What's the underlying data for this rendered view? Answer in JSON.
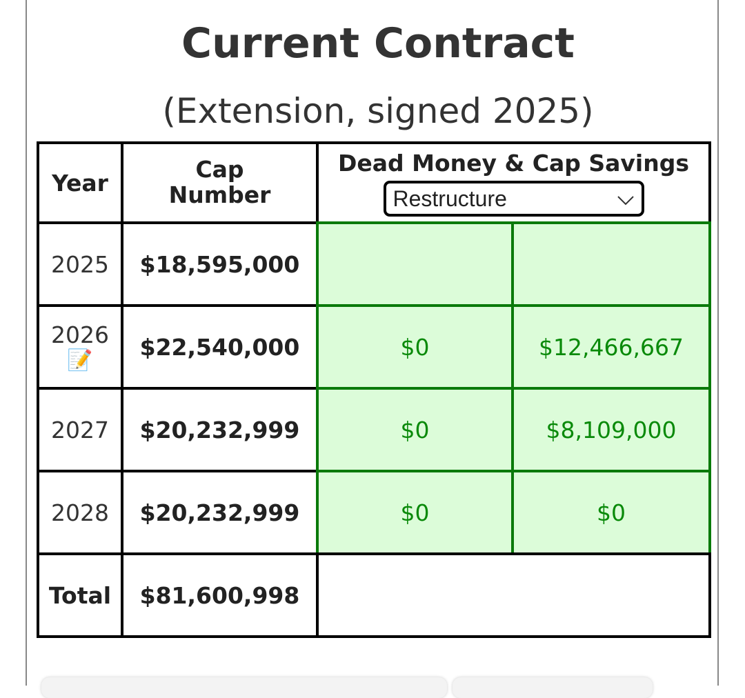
{
  "header": {
    "title": "Current Contract",
    "subtitle": "(Extension, signed 2025)"
  },
  "table": {
    "headers": [
      "Year",
      "Cap Number",
      "Dead Money & Cap Savings"
    ],
    "dropdown": "Restructure",
    "rows": [
      {
        "year": "2025",
        "cap": "$18,595,000"
      },
      {
        "year": "2026",
        "cap": "$22,540,000",
        "dead": "$0",
        "savings": "$12,466,667"
      },
      {
        "year": "2027",
        "cap": "$20,232,999",
        "dead": "$0",
        "savings": "$8,109,000"
      },
      {
        "year": "2028",
        "cap": "$20,232,999",
        "dead": "$0",
        "savings": "$0"
      }
    ],
    "total": {
      "label": "Total",
      "cap": "$81,600,998"
    }
  }
}
